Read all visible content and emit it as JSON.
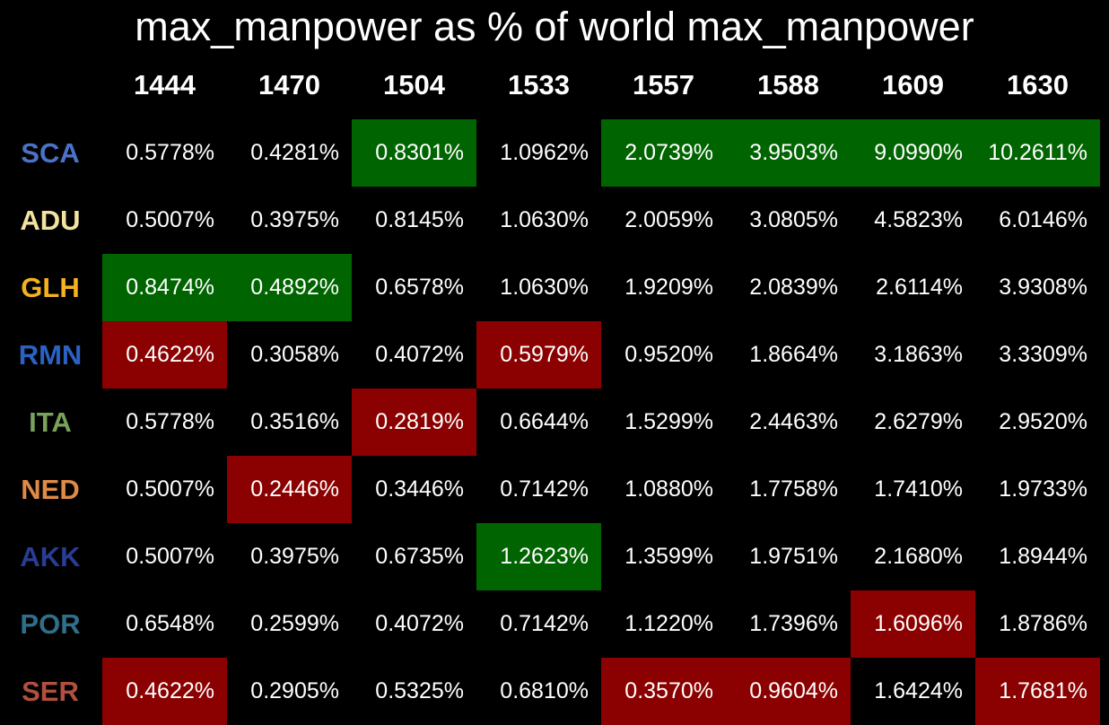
{
  "title": "max_manpower as % of world max_manpower",
  "chart_data": {
    "type": "table",
    "title": "max_manpower as % of world max_manpower",
    "columns": [
      "1444",
      "1470",
      "1504",
      "1533",
      "1557",
      "1588",
      "1609",
      "1630"
    ],
    "colors": {
      "high": "#006400",
      "low": "#8b0000",
      "none": "#000000"
    },
    "rows": [
      {
        "label": "SCA",
        "label_color": "#4a73c8",
        "values": [
          "0.5778%",
          "0.4281%",
          "0.8301%",
          "1.0962%",
          "2.0739%",
          "3.9503%",
          "9.0990%",
          "10.2611%"
        ],
        "highlights": [
          "",
          "",
          "high",
          "",
          "high",
          "high",
          "high",
          "high"
        ]
      },
      {
        "label": "ADU",
        "label_color": "#f3e3a0",
        "values": [
          "0.5007%",
          "0.3975%",
          "0.8145%",
          "1.0630%",
          "2.0059%",
          "3.0805%",
          "4.5823%",
          "6.0146%"
        ],
        "highlights": [
          "",
          "",
          "",
          "",
          "",
          "",
          "",
          ""
        ]
      },
      {
        "label": "GLH",
        "label_color": "#f5b21f",
        "values": [
          "0.8474%",
          "0.4892%",
          "0.6578%",
          "1.0630%",
          "1.9209%",
          "2.0839%",
          "2.6114%",
          "3.9308%"
        ],
        "highlights": [
          "high",
          "high",
          "",
          "",
          "",
          "",
          "",
          ""
        ]
      },
      {
        "label": "RMN",
        "label_color": "#2a62c4",
        "values": [
          "0.4622%",
          "0.3058%",
          "0.4072%",
          "0.5979%",
          "0.9520%",
          "1.8664%",
          "3.1863%",
          "3.3309%"
        ],
        "highlights": [
          "low",
          "",
          "",
          "low",
          "",
          "",
          "",
          ""
        ]
      },
      {
        "label": "ITA",
        "label_color": "#7aa25b",
        "values": [
          "0.5778%",
          "0.3516%",
          "0.2819%",
          "0.6644%",
          "1.5299%",
          "2.4463%",
          "2.6279%",
          "2.9520%"
        ],
        "highlights": [
          "",
          "",
          "low",
          "",
          "",
          "",
          "",
          ""
        ]
      },
      {
        "label": "NED",
        "label_color": "#e08a44",
        "values": [
          "0.5007%",
          "0.2446%",
          "0.3446%",
          "0.7142%",
          "1.0880%",
          "1.7758%",
          "1.7410%",
          "1.9733%"
        ],
        "highlights": [
          "",
          "low",
          "",
          "",
          "",
          "",
          "",
          ""
        ]
      },
      {
        "label": "AKK",
        "label_color": "#283d93",
        "values": [
          "0.5007%",
          "0.3975%",
          "0.6735%",
          "1.2623%",
          "1.3599%",
          "1.9751%",
          "2.1680%",
          "1.8944%"
        ],
        "highlights": [
          "",
          "",
          "",
          "high",
          "",
          "",
          "",
          ""
        ]
      },
      {
        "label": "POR",
        "label_color": "#2f6f8c",
        "values": [
          "0.6548%",
          "0.2599%",
          "0.4072%",
          "0.7142%",
          "1.1220%",
          "1.7396%",
          "1.6096%",
          "1.8786%"
        ],
        "highlights": [
          "",
          "",
          "",
          "",
          "",
          "",
          "low",
          ""
        ]
      },
      {
        "label": "SER",
        "label_color": "#b2503f",
        "values": [
          "0.4622%",
          "0.2905%",
          "0.5325%",
          "0.6810%",
          "0.3570%",
          "0.9604%",
          "1.6424%",
          "1.7681%"
        ],
        "highlights": [
          "low",
          "",
          "",
          "",
          "low",
          "low",
          "",
          "low"
        ]
      }
    ]
  }
}
